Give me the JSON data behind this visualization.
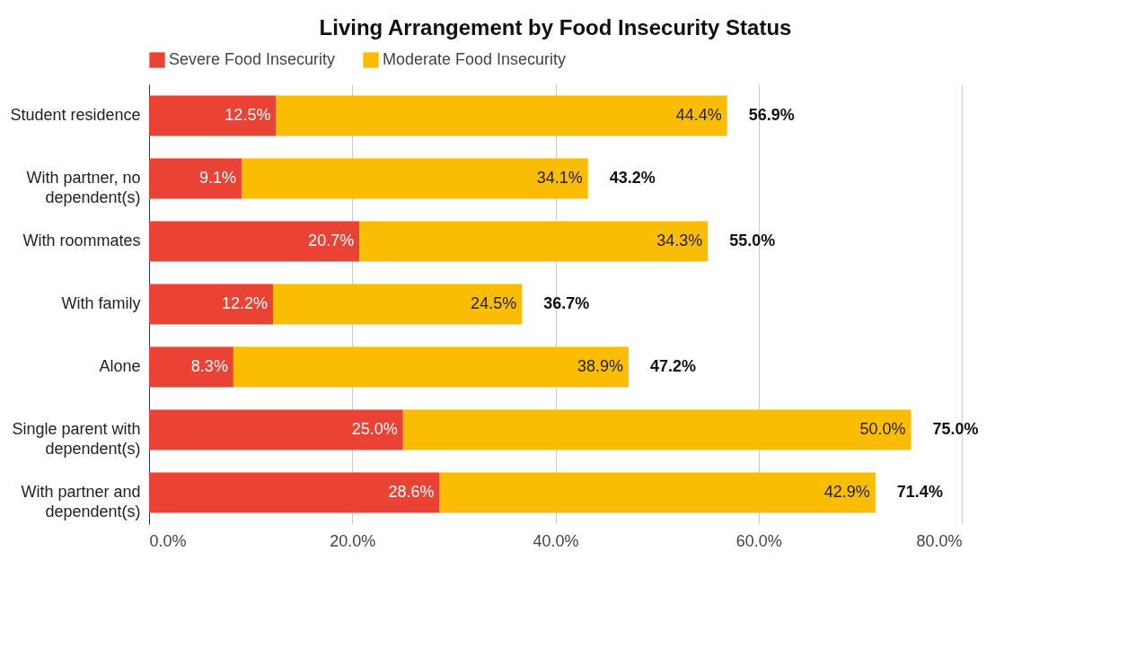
{
  "chart_data": {
    "type": "bar",
    "orientation": "horizontal",
    "stacked": true,
    "title": "Living Arrangement by Food Insecurity Status",
    "categories": [
      "Student residence",
      "With partner, no dependent(s)",
      "With roommates",
      "With family",
      "Alone",
      "Single parent with dependent(s)",
      "With partner and dependent(s)"
    ],
    "series": [
      {
        "name": "Severe Food Insecurity",
        "color": "#ea4335",
        "values": [
          12.5,
          9.1,
          20.7,
          12.2,
          8.3,
          25.0,
          28.6
        ],
        "value_labels": [
          "12.5%",
          "9.1%",
          "20.7%",
          "12.2%",
          "8.3%",
          "25.0%",
          "28.6%"
        ]
      },
      {
        "name": "Moderate Food Insecurity",
        "color": "#fbbc04",
        "values": [
          44.4,
          34.1,
          34.3,
          24.5,
          38.9,
          50.0,
          42.9
        ],
        "value_labels": [
          "44.4%",
          "34.1%",
          "34.3%",
          "24.5%",
          "38.9%",
          "50.0%",
          "42.9%"
        ]
      }
    ],
    "totals": [
      "56.9%",
      "43.2%",
      "55.0%",
      "36.7%",
      "47.2%",
      "75.0%",
      "71.4%"
    ],
    "xlim": [
      0,
      80
    ],
    "xticks": [
      {
        "value": 0,
        "label": "0.0%"
      },
      {
        "value": 20,
        "label": "20.0%"
      },
      {
        "value": 40,
        "label": "40.0%"
      },
      {
        "value": 60,
        "label": "60.0%"
      },
      {
        "value": 80,
        "label": "80.0%"
      }
    ],
    "grid": "x",
    "legend": "top"
  }
}
